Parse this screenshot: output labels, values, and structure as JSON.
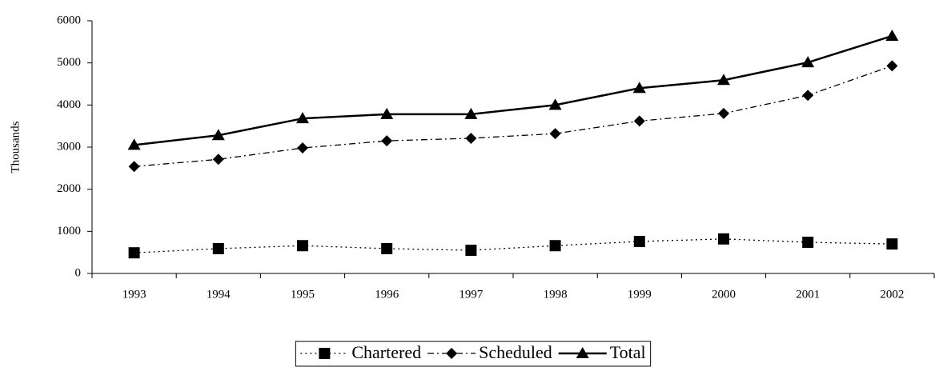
{
  "chart_data": {
    "type": "line",
    "y_label": "Thousands",
    "categories": [
      "1993",
      "1994",
      "1995",
      "1996",
      "1997",
      "1998",
      "1999",
      "2000",
      "2001",
      "2002"
    ],
    "series": [
      {
        "name": "Chartered",
        "color": "#000000",
        "marker": "square",
        "dash": "dotted",
        "values": [
          490,
          590,
          660,
          590,
          550,
          660,
          760,
          820,
          740,
          700
        ]
      },
      {
        "name": "Scheduled",
        "color": "#000000",
        "marker": "diamond",
        "dash": "dashdot",
        "values": [
          2540,
          2710,
          2980,
          3150,
          3210,
          3320,
          3620,
          3800,
          4230,
          4930
        ]
      },
      {
        "name": "Total",
        "color": "#000000",
        "marker": "triangle",
        "dash": "solid",
        "values": [
          3050,
          3280,
          3680,
          3780,
          3780,
          4000,
          4400,
          4590,
          5010,
          5640
        ]
      }
    ],
    "ylim": [
      0,
      6000
    ],
    "yticks": [
      0,
      1000,
      2000,
      3000,
      4000,
      5000,
      6000
    ],
    "grid": false,
    "legend": "bottom"
  }
}
